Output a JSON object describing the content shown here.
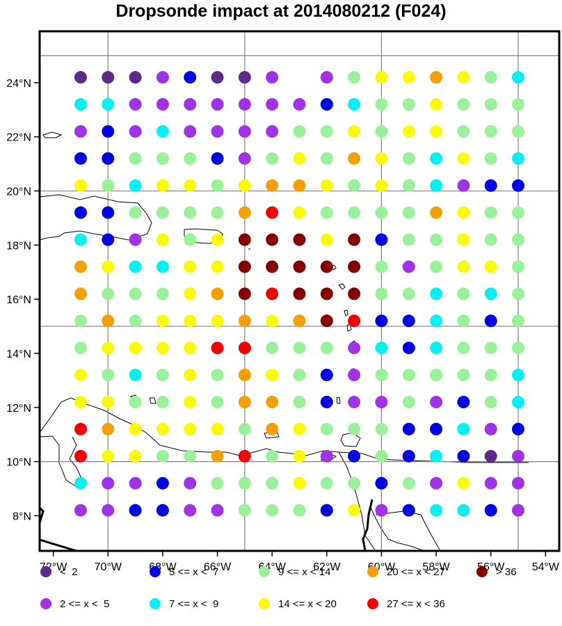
{
  "title": "Dropsonde impact at 2014080212 (F024)",
  "map": {
    "lon_range": [
      -72.5,
      -53.5
    ],
    "lat_range": [
      6.7,
      25.9
    ],
    "lon_ticks": [
      {
        "value": -72,
        "label": "72°W"
      },
      {
        "value": -70,
        "label": "70°W"
      },
      {
        "value": -68,
        "label": "68°W"
      },
      {
        "value": -66,
        "label": "66°W"
      },
      {
        "value": -64,
        "label": "64°W"
      },
      {
        "value": -62,
        "label": "62°W"
      },
      {
        "value": -60,
        "label": "60°W"
      },
      {
        "value": -58,
        "label": "58°W"
      },
      {
        "value": -56,
        "label": "56°W"
      },
      {
        "value": -54,
        "label": "54°W"
      }
    ],
    "lat_ticks": [
      {
        "value": 8,
        "label": "8°N"
      },
      {
        "value": 10,
        "label": "10°N"
      },
      {
        "value": 12,
        "label": "12°N"
      },
      {
        "value": 14,
        "label": "14°N"
      },
      {
        "value": 16,
        "label": "16°N"
      },
      {
        "value": 18,
        "label": "18°N"
      },
      {
        "value": 20,
        "label": "20°N"
      },
      {
        "value": 22,
        "label": "22°N"
      },
      {
        "value": 24,
        "label": "24°N"
      }
    ],
    "grid_lons": [
      -70,
      -65,
      -60,
      -55
    ],
    "grid_lats": [
      10,
      15,
      20,
      25
    ],
    "grid_color": "#808080",
    "coast_color": "#000000"
  },
  "chart_data": {
    "type": "scatter",
    "title": "Dropsonde impact at 2014080212 (F024)",
    "x_lons": [
      -71,
      -70,
      -69,
      -68,
      -67,
      -66,
      -65,
      -64,
      -63,
      -62,
      -61,
      -60,
      -59,
      -58,
      -57,
      -56,
      -55
    ],
    "y_lats": [
      24.2,
      23.2,
      22.2,
      21.2,
      20.2,
      19.2,
      18.2,
      17.2,
      16.2,
      15.2,
      14.2,
      13.2,
      12.2,
      11.2,
      10.2,
      9.2,
      8.2
    ],
    "category_grid": [
      "AAABCAAB BGYYOYGT",
      "TTBBBBBBBCTGGYGGG",
      "BCBTBBBBGGYGYYGGG",
      "CCGGGCBGYGOYGTYGT",
      "YGTYYGYOOYGYGTBCC",
      "CCGGGGORYGGGGOYGG",
      "TCBYGYDDDYDCGGYGG",
      "OYTTYYDDDDDGBGYYG",
      "OGGGYODRDDDGGTGTG",
      "GOGYYYOYODRCCTGCG",
      "GYYYYRRGGGBTCTGGG",
      "YGTGYGOYGCBGGGGGT",
      "YYGGYGOOGCBBGBCGT",
      "ROYYYYGOYGGGCCTBC",
      "RYYGGORGYBCGCTCAB",
      "TBBCBGGGYGGCGBYBB",
      "BBCCBBGGGCYBCTTCB"
    ],
    "category_key": {
      "A": "< 2",
      "B": "2 <= x < 5",
      "C": "5 <= x < 7",
      "T": "7 <= x < 9",
      "G": "9 <= x < 14",
      "Y": "14 <= x < 20",
      "O": "20 <= x < 27",
      "R": "27 <= x < 36",
      "D": "> 36"
    },
    "category_colors": {
      "A": "#5b2a8a",
      "B": "#a232e8",
      "C": "#0000e6",
      "T": "#00f2f2",
      "G": "#99f299",
      "Y": "#fafa00",
      "O": "#f5a000",
      "R": "#f50000",
      "D": "#870000"
    }
  },
  "legend": {
    "items": [
      {
        "label": "<  2",
        "color": "#5b2a8a"
      },
      {
        "label": "5 <= x <  7",
        "color": "#0000e6"
      },
      {
        "label": "9 <= x < 14",
        "color": "#99f299"
      },
      {
        "label": "20 <= x < 27",
        "color": "#f5a000"
      },
      {
        "label": "> 36",
        "color": "#870000"
      },
      {
        "label": "2 <= x <  5",
        "color": "#a232e8"
      },
      {
        "label": "7 <= x <  9",
        "color": "#00f2f2"
      },
      {
        "label": "14 <= x < 20",
        "color": "#fafa00"
      },
      {
        "label": "27 <= x < 36",
        "color": "#f50000"
      }
    ]
  }
}
